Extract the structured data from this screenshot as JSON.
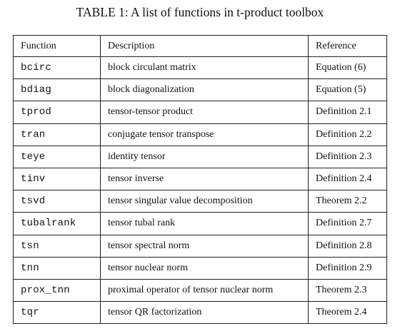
{
  "caption": "TABLE 1: A list of functions in t-product toolbox",
  "table": {
    "headers": [
      "Function",
      "Description",
      "Reference"
    ],
    "rows": [
      {
        "function": "bcirc",
        "description": "block circulant matrix",
        "reference": "Equation (6)"
      },
      {
        "function": "bdiag",
        "description": "block diagonalization",
        "reference": "Equation (5)"
      },
      {
        "function": "tprod",
        "description": "tensor-tensor product",
        "reference": "Definition 2.1"
      },
      {
        "function": "tran",
        "description": "conjugate tensor transpose",
        "reference": "Definition 2.2"
      },
      {
        "function": "teye",
        "description": "identity tensor",
        "reference": "Definition 2.3"
      },
      {
        "function": "tinv",
        "description": "tensor inverse",
        "reference": "Definition 2.4"
      },
      {
        "function": "tsvd",
        "description": "tensor singular value decomposition",
        "reference": "Theorem 2.2"
      },
      {
        "function": "tubalrank",
        "description": "tensor tubal rank",
        "reference": "Definition 2.7"
      },
      {
        "function": "tsn",
        "description": "tensor spectral norm",
        "reference": "Definition 2.8"
      },
      {
        "function": "tnn",
        "description": "tensor nuclear norm",
        "reference": "Definition 2.9"
      },
      {
        "function": "prox_tnn",
        "description": "proximal operator of tensor nuclear norm",
        "reference": "Theorem 2.3"
      },
      {
        "function": "tqr",
        "description": "tensor QR factorization",
        "reference": "Theorem 2.4"
      }
    ]
  }
}
